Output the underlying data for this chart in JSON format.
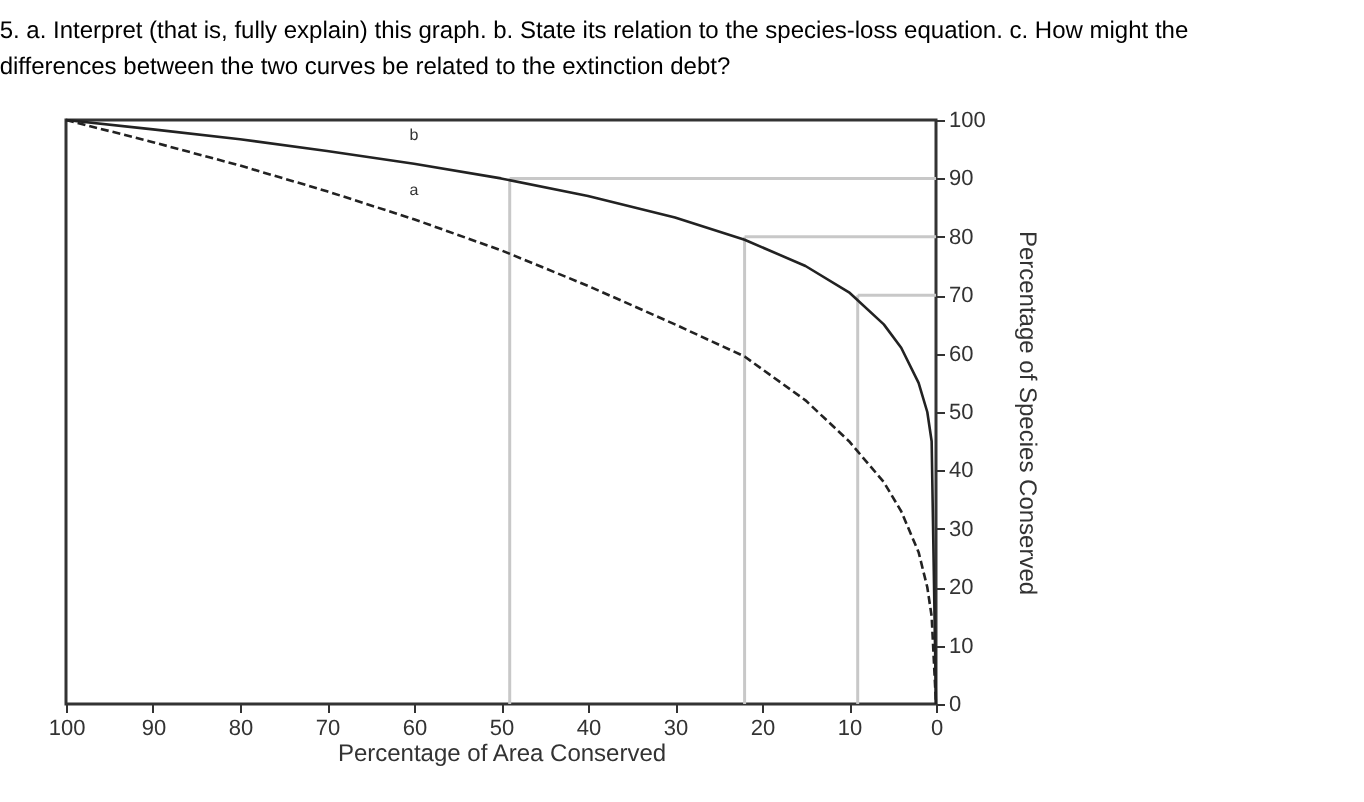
{
  "chart_data": {
    "type": "line",
    "title": "5. a. Interpret (that is, fully explain) this graph. b. State its relation to the species-loss equation. c. How might the differences between the two curves be related to the extinction debt?",
    "xlabel": "Percentage of Area Conserved",
    "ylabel": "Percentage of Species Conserved",
    "x": [
      100,
      90,
      80,
      70,
      60,
      50,
      40,
      30,
      22,
      15,
      10,
      6,
      4,
      2,
      1,
      0.5,
      0
    ],
    "series": [
      {
        "name": "b",
        "color": "#222222",
        "line_style": "solid",
        "values": [
          100,
          98.4,
          96.7,
          94.7,
          92.5,
          90,
          87,
          83.3,
          79.5,
          75,
          70.5,
          65,
          61,
          55,
          50,
          45,
          0
        ]
      },
      {
        "name": "a",
        "color": "#222222",
        "line_style": "dashed",
        "values": [
          100,
          96.2,
          92.2,
          87.8,
          83,
          77.7,
          71.6,
          65,
          59.5,
          52,
          45,
          38,
          33,
          26,
          20,
          15,
          0
        ]
      }
    ],
    "ref_lines": [
      {
        "axis": "x",
        "value": 49,
        "color": "#c8c8c8"
      },
      {
        "axis": "x",
        "value": 22,
        "color": "#c8c8c8"
      },
      {
        "axis": "x",
        "value": 9,
        "color": "#c8c8c8"
      },
      {
        "axis": "y",
        "value": 90,
        "color": "#c8c8c8"
      },
      {
        "axis": "y",
        "value": 80,
        "color": "#c8c8c8"
      },
      {
        "axis": "y",
        "value": 70,
        "color": "#c8c8c8"
      }
    ],
    "xlim": [
      100,
      0
    ],
    "xticks": [
      100,
      90,
      80,
      70,
      60,
      50,
      40,
      30,
      20,
      10,
      0
    ],
    "ylim": [
      0,
      100
    ],
    "yticks": [
      0,
      10,
      20,
      30,
      40,
      50,
      60,
      70,
      80,
      90,
      100
    ],
    "grid": false
  }
}
